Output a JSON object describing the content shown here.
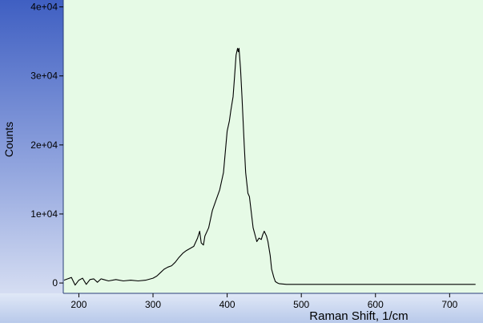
{
  "chart_data": {
    "type": "line",
    "title": "",
    "xlabel": "Raman Shift, 1/cm",
    "ylabel": "Counts",
    "xlim": [
      179,
      745
    ],
    "ylim": [
      -1500,
      41000
    ],
    "x_ticks": [
      200,
      300,
      400,
      500,
      600,
      700
    ],
    "y_ticks": [
      0,
      10000,
      20000,
      30000,
      40000
    ],
    "x_tick_labels": [
      "200",
      "300",
      "400",
      "500",
      "600",
      "700"
    ],
    "y_tick_labels": [
      "0",
      "1e+04",
      "2e+04",
      "3e+04",
      "4e+04"
    ],
    "grid": false,
    "colors": {
      "plot_background": "#e6fae6",
      "y_axis_top": "#3f5fc2",
      "y_axis_bottom": "#c8d3ee",
      "x_axis_bg": "#c9d7f0",
      "line": "#000000"
    },
    "series": [
      {
        "x": [
          180,
          185,
          190,
          195,
          200,
          205,
          210,
          215,
          220,
          225,
          230,
          240,
          250,
          260,
          270,
          280,
          290,
          300,
          305,
          310,
          315,
          320,
          325,
          330,
          335,
          340,
          345,
          350,
          355,
          360,
          363,
          365,
          368,
          370,
          375,
          380,
          385,
          390,
          395,
          400,
          403,
          405,
          408,
          410,
          412,
          414,
          415,
          416,
          418,
          420,
          423,
          425,
          428,
          430,
          435,
          440,
          443,
          446,
          448,
          450,
          453,
          455,
          458,
          460,
          463,
          465,
          468,
          470,
          480,
          500,
          550,
          600,
          650,
          700,
          735
        ],
        "y": [
          400,
          600,
          800,
          -300,
          400,
          700,
          -200,
          500,
          600,
          100,
          600,
          300,
          500,
          300,
          400,
          300,
          400,
          700,
          1000,
          1500,
          2000,
          2300,
          2500,
          3000,
          3700,
          4300,
          4700,
          5000,
          5300,
          6500,
          7500,
          5800,
          5500,
          6800,
          8000,
          10500,
          12000,
          13500,
          16000,
          22000,
          23500,
          25000,
          27000,
          30000,
          33000,
          34000,
          33500,
          34000,
          31000,
          27000,
          20000,
          16000,
          13000,
          12500,
          8000,
          6000,
          6500,
          6300,
          7000,
          7500,
          6800,
          6000,
          4000,
          2000,
          800,
          200,
          0,
          -100,
          -200,
          -200,
          -200,
          -200,
          -200,
          -200,
          -200
        ]
      }
    ]
  }
}
